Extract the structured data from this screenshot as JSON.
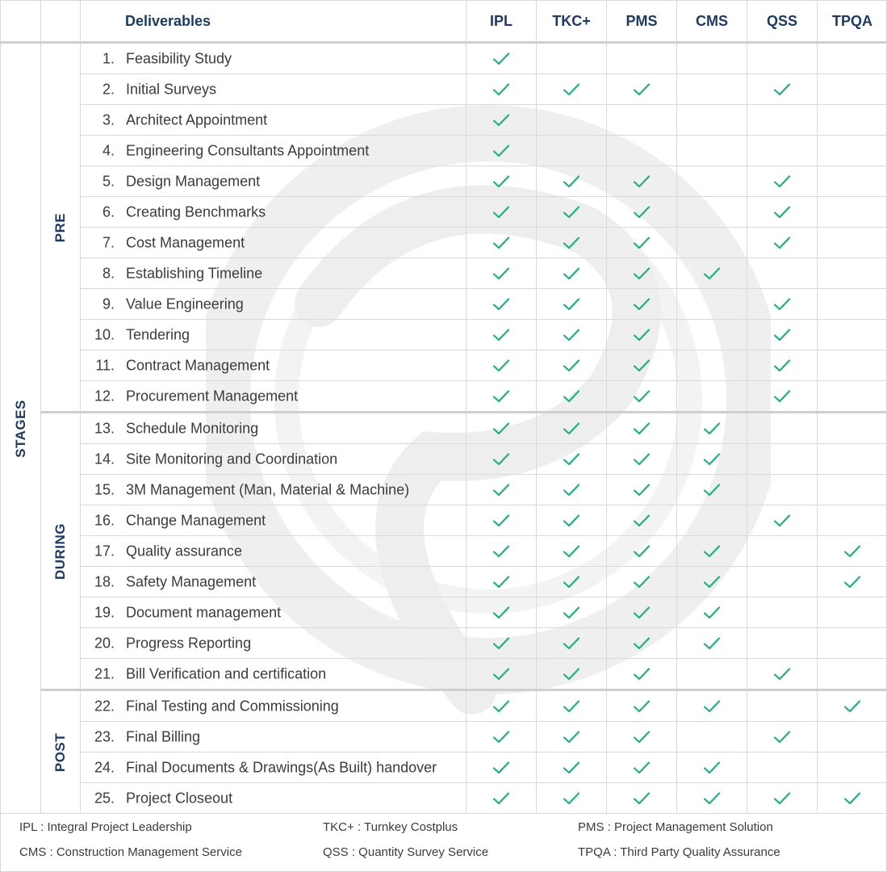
{
  "header": {
    "deliverables": "Deliverables",
    "columns": [
      "IPL",
      "TKC+",
      "PMS",
      "CMS",
      "QSS",
      "TPQA"
    ]
  },
  "stages_label": "STAGES",
  "groups": [
    {
      "label": "PRE",
      "rows": [
        0,
        11
      ]
    },
    {
      "label": "DURING",
      "rows": [
        12,
        20
      ]
    },
    {
      "label": "POST",
      "rows": [
        21,
        24
      ]
    }
  ],
  "rows": [
    {
      "num": "1.",
      "label": "Feasibility Study",
      "checks": [
        1,
        0,
        0,
        0,
        0,
        0
      ]
    },
    {
      "num": "2.",
      "label": "Initial Surveys",
      "checks": [
        1,
        1,
        1,
        0,
        1,
        0
      ]
    },
    {
      "num": "3.",
      "label": "Architect Appointment",
      "checks": [
        1,
        0,
        0,
        0,
        0,
        0
      ]
    },
    {
      "num": "4.",
      "label": "Engineering Consultants Appointment",
      "checks": [
        1,
        0,
        0,
        0,
        0,
        0
      ]
    },
    {
      "num": "5.",
      "label": "Design Management",
      "checks": [
        1,
        1,
        1,
        0,
        1,
        0
      ]
    },
    {
      "num": "6.",
      "label": "Creating Benchmarks",
      "checks": [
        1,
        1,
        1,
        0,
        1,
        0
      ]
    },
    {
      "num": "7.",
      "label": "Cost Management",
      "checks": [
        1,
        1,
        1,
        0,
        1,
        0
      ]
    },
    {
      "num": "8.",
      "label": "Establishing Timeline",
      "checks": [
        1,
        1,
        1,
        1,
        0,
        0
      ]
    },
    {
      "num": "9.",
      "label": "Value Engineering",
      "checks": [
        1,
        1,
        1,
        0,
        1,
        0
      ]
    },
    {
      "num": "10.",
      "label": "Tendering",
      "checks": [
        1,
        1,
        1,
        0,
        1,
        0
      ]
    },
    {
      "num": "11.",
      "label": "Contract Management",
      "checks": [
        1,
        1,
        1,
        0,
        1,
        0
      ]
    },
    {
      "num": "12.",
      "label": "Procurement Management",
      "checks": [
        1,
        1,
        1,
        0,
        1,
        0
      ]
    },
    {
      "num": "13.",
      "label": "Schedule Monitoring",
      "checks": [
        1,
        1,
        1,
        1,
        0,
        0
      ]
    },
    {
      "num": "14.",
      "label": "Site Monitoring and Coordination",
      "checks": [
        1,
        1,
        1,
        1,
        0,
        0
      ]
    },
    {
      "num": "15.",
      "label": "3M Management (Man, Material & Machine)",
      "checks": [
        1,
        1,
        1,
        1,
        0,
        0
      ]
    },
    {
      "num": "16.",
      "label": "Change Management",
      "checks": [
        1,
        1,
        1,
        0,
        1,
        0
      ]
    },
    {
      "num": "17.",
      "label": "Quality assurance",
      "checks": [
        1,
        1,
        1,
        1,
        0,
        1
      ]
    },
    {
      "num": "18.",
      "label": "Safety Management",
      "checks": [
        1,
        1,
        1,
        1,
        0,
        1
      ]
    },
    {
      "num": "19.",
      "label": "Document management",
      "checks": [
        1,
        1,
        1,
        1,
        0,
        0
      ]
    },
    {
      "num": "20.",
      "label": "Progress Reporting",
      "checks": [
        1,
        1,
        1,
        1,
        0,
        0
      ]
    },
    {
      "num": "21.",
      "label": "Bill Verification and certification",
      "checks": [
        1,
        1,
        1,
        0,
        1,
        0
      ]
    },
    {
      "num": "22.",
      "label": "Final Testing and Commissioning",
      "checks": [
        1,
        1,
        1,
        1,
        0,
        1
      ]
    },
    {
      "num": "23.",
      "label": "Final Billing",
      "checks": [
        1,
        1,
        1,
        0,
        1,
        0
      ]
    },
    {
      "num": "24.",
      "label": "Final Documents & Drawings(As Built)  handover",
      "checks": [
        1,
        1,
        1,
        1,
        0,
        0
      ]
    },
    {
      "num": "25.",
      "label": "Project Closeout",
      "checks": [
        1,
        1,
        1,
        1,
        1,
        1
      ]
    }
  ],
  "legend": [
    "IPL : Integral Project Leadership",
    "TKC+ : Turnkey Costplus",
    "PMS : Project Management Solution",
    "CMS : Construction Management Service",
    "QSS : Quantity Survey Service",
    "TPQA : Third Party Quality Assurance"
  ],
  "colors": {
    "check": "#19b37e",
    "heading": "#1c3a66",
    "text": "#3b3b3b",
    "watermark": "#ececec"
  },
  "icons": {
    "check": "check-icon",
    "watermark": "logo-watermark"
  }
}
